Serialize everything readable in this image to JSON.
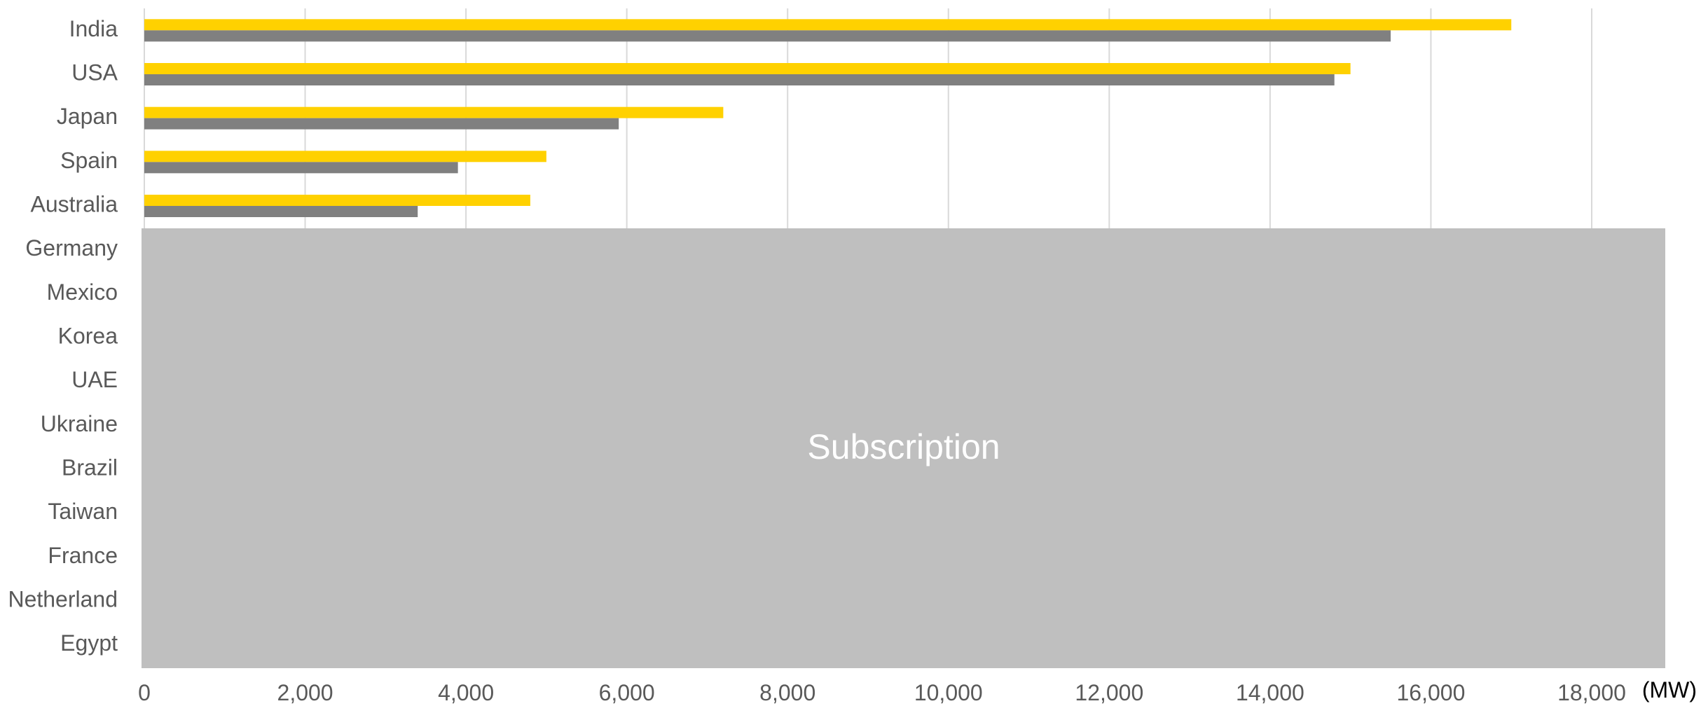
{
  "chart_data": {
    "type": "bar",
    "orientation": "horizontal",
    "categories": [
      "India",
      "USA",
      "Japan",
      "Spain",
      "Australia",
      "Germany",
      "Mexico",
      "Korea",
      "UAE",
      "Ukraine",
      "Brazil",
      "Taiwan",
      "France",
      "Netherland",
      "Egypt"
    ],
    "series": [
      {
        "color": "#FFD100",
        "values": [
          17000,
          15000,
          7200,
          5000,
          4800,
          null,
          null,
          null,
          null,
          null,
          null,
          null,
          null,
          null,
          null
        ]
      },
      {
        "color": "#808080",
        "values": [
          15500,
          14800,
          5900,
          3900,
          3400,
          null,
          null,
          null,
          null,
          null,
          null,
          null,
          null,
          null,
          null
        ]
      }
    ],
    "xlim": [
      0,
      18000
    ],
    "xticks": [
      0,
      2000,
      4000,
      6000,
      8000,
      10000,
      12000,
      14000,
      16000,
      18000
    ],
    "xtick_labels": [
      "0",
      "2,000",
      "4,000",
      "6,000",
      "8,000",
      "10,000",
      "12,000",
      "14,000",
      "16,000",
      "18,000"
    ],
    "unit_label": "(MW)",
    "grid": true,
    "legend": "none"
  },
  "overlay": {
    "label": "Subscription",
    "color": "#BFBFBF"
  },
  "colors": {
    "gridline": "#D9D9D9",
    "axis_text": "#595959"
  }
}
